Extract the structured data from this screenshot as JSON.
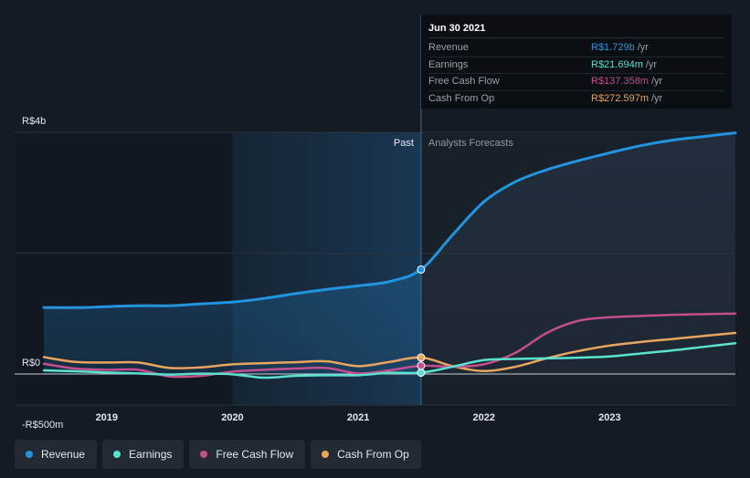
{
  "chart_data": {
    "type": "line",
    "title": "",
    "xlabel": "",
    "ylabel": "",
    "ylim": [
      -500,
      4000
    ],
    "y_tick_labels": [
      {
        "value": 4000,
        "label": "R$4b"
      },
      {
        "value": 0,
        "label": "R$0"
      },
      {
        "value": -500,
        "label": "-R$500m"
      }
    ],
    "xlim": [
      2018.5,
      2024.0
    ],
    "x_ticks": [
      {
        "value": 2019,
        "label": "2019"
      },
      {
        "value": 2020,
        "label": "2020"
      },
      {
        "value": 2021,
        "label": "2021"
      },
      {
        "value": 2022,
        "label": "2022"
      },
      {
        "value": 2023,
        "label": "2023"
      }
    ],
    "past_region_start": 2020.0,
    "divider": 2021.5,
    "past_label": "Past",
    "forecast_label": "Analysts Forecasts",
    "series": [
      {
        "name": "Revenue",
        "color": "#2394df",
        "points": [
          [
            2018.5,
            1100
          ],
          [
            2018.8,
            1100
          ],
          [
            2019.0,
            1115
          ],
          [
            2019.25,
            1130
          ],
          [
            2019.5,
            1130
          ],
          [
            2019.75,
            1160
          ],
          [
            2020.0,
            1190
          ],
          [
            2020.25,
            1250
          ],
          [
            2020.5,
            1330
          ],
          [
            2020.75,
            1400
          ],
          [
            2021.0,
            1460
          ],
          [
            2021.25,
            1530
          ],
          [
            2021.5,
            1729
          ],
          [
            2021.75,
            2300
          ],
          [
            2022.0,
            2850
          ],
          [
            2022.25,
            3180
          ],
          [
            2022.5,
            3380
          ],
          [
            2022.75,
            3530
          ],
          [
            2023.0,
            3660
          ],
          [
            2023.25,
            3780
          ],
          [
            2023.5,
            3870
          ],
          [
            2023.75,
            3930
          ],
          [
            2024.0,
            3990
          ]
        ]
      },
      {
        "name": "Earnings",
        "color": "#5ae1d0",
        "points": [
          [
            2018.5,
            60
          ],
          [
            2018.75,
            45
          ],
          [
            2019.0,
            25
          ],
          [
            2019.25,
            10
          ],
          [
            2019.5,
            -10
          ],
          [
            2019.75,
            5
          ],
          [
            2020.0,
            -5
          ],
          [
            2020.25,
            -60
          ],
          [
            2020.5,
            -30
          ],
          [
            2020.75,
            -20
          ],
          [
            2021.0,
            -20
          ],
          [
            2021.25,
            20
          ],
          [
            2021.5,
            22
          ],
          [
            2021.75,
            120
          ],
          [
            2022.0,
            230
          ],
          [
            2022.25,
            250
          ],
          [
            2022.5,
            260
          ],
          [
            2022.75,
            270
          ],
          [
            2023.0,
            290
          ],
          [
            2023.25,
            340
          ],
          [
            2023.5,
            390
          ],
          [
            2023.75,
            450
          ],
          [
            2024.0,
            510
          ]
        ]
      },
      {
        "name": "Free Cash Flow",
        "color": "#c44e8e",
        "points": [
          [
            2018.5,
            170
          ],
          [
            2018.75,
            90
          ],
          [
            2019.0,
            70
          ],
          [
            2019.25,
            70
          ],
          [
            2019.5,
            -40
          ],
          [
            2019.75,
            -30
          ],
          [
            2020.0,
            40
          ],
          [
            2020.25,
            70
          ],
          [
            2020.5,
            90
          ],
          [
            2020.75,
            100
          ],
          [
            2021.0,
            10
          ],
          [
            2021.25,
            60
          ],
          [
            2021.5,
            137
          ],
          [
            2021.75,
            120
          ],
          [
            2022.0,
            160
          ],
          [
            2022.25,
            350
          ],
          [
            2022.5,
            680
          ],
          [
            2022.75,
            880
          ],
          [
            2023.0,
            940
          ],
          [
            2023.25,
            960
          ],
          [
            2023.5,
            980
          ],
          [
            2023.75,
            990
          ],
          [
            2024.0,
            1000
          ]
        ]
      },
      {
        "name": "Cash From Op",
        "color": "#e9a55d",
        "points": [
          [
            2018.5,
            280
          ],
          [
            2018.75,
            200
          ],
          [
            2019.0,
            190
          ],
          [
            2019.25,
            190
          ],
          [
            2019.5,
            100
          ],
          [
            2019.75,
            110
          ],
          [
            2020.0,
            160
          ],
          [
            2020.25,
            180
          ],
          [
            2020.5,
            195
          ],
          [
            2020.75,
            210
          ],
          [
            2021.0,
            130
          ],
          [
            2021.25,
            200
          ],
          [
            2021.5,
            273
          ],
          [
            2021.75,
            130
          ],
          [
            2022.0,
            50
          ],
          [
            2022.25,
            120
          ],
          [
            2022.5,
            260
          ],
          [
            2022.75,
            380
          ],
          [
            2023.0,
            470
          ],
          [
            2023.25,
            530
          ],
          [
            2023.5,
            580
          ],
          [
            2023.75,
            630
          ],
          [
            2024.0,
            680
          ]
        ]
      }
    ]
  },
  "tooltip": {
    "date": "Jun 30 2021",
    "rows": [
      {
        "label": "Revenue",
        "value": "R$1.729b",
        "unit": "/yr",
        "color": "#2394df"
      },
      {
        "label": "Earnings",
        "value": "R$21.694m",
        "unit": "/yr",
        "color": "#5ae1d0"
      },
      {
        "label": "Free Cash Flow",
        "value": "R$137.358m",
        "unit": "/yr",
        "color": "#c44e8e"
      },
      {
        "label": "Cash From Op",
        "value": "R$272.597m",
        "unit": "/yr",
        "color": "#e9a55d"
      }
    ]
  },
  "legend": [
    {
      "label": "Revenue",
      "color": "#2394df"
    },
    {
      "label": "Earnings",
      "color": "#5ae1d0"
    },
    {
      "label": "Free Cash Flow",
      "color": "#c44e8e"
    },
    {
      "label": "Cash From Op",
      "color": "#e9a55d"
    }
  ]
}
